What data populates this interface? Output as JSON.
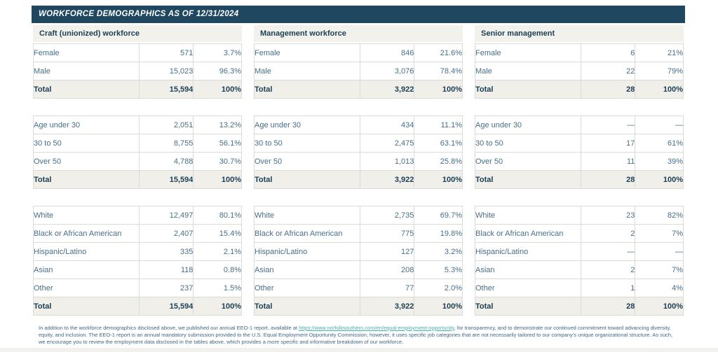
{
  "title_bar": {
    "title": "WORKFORCE DEMOGRAPHICS AS OF 12/31/2024"
  },
  "colors": {
    "title_bar_bg": "#1f4760",
    "title_bar_text": "#ffffff",
    "section_header_bg": "#f2f1ec",
    "total_row_bg": "#f0efea",
    "row_text": "#476e88",
    "bold_text": "#1d4055",
    "border": "#dadad6",
    "link": "#45b1aa"
  },
  "sections": [
    {
      "header": "Craft (unionized) workforce",
      "tables": [
        {
          "name": "gender",
          "rows": [
            [
              "Female",
              "571",
              "3.7%"
            ],
            [
              "Male",
              "15,023",
              "96.3%"
            ]
          ],
          "total_row": [
            "Total",
            "15,594",
            "100%"
          ]
        },
        {
          "name": "age",
          "rows": [
            [
              "Age under 30",
              "2,051",
              "13.2%"
            ],
            [
              "30 to 50",
              "8,755",
              "56.1%"
            ],
            [
              "Over 50",
              "4,788",
              "30.7%"
            ]
          ],
          "total_row": [
            "Total",
            "15,594",
            "100%"
          ]
        },
        {
          "name": "race-ethnicity",
          "rows": [
            [
              "White",
              "12,497",
              "80.1%"
            ],
            [
              "Black or African American",
              "2,407",
              "15.4%"
            ],
            [
              "Hispanic/Latino",
              "335",
              "2.1%"
            ],
            [
              "Asian",
              "118",
              "0.8%"
            ],
            [
              "Other",
              "237",
              "1.5%"
            ]
          ],
          "total_row": [
            "Total",
            "15,594",
            "100%"
          ]
        }
      ]
    },
    {
      "header": "Management workforce",
      "tables": [
        {
          "name": "gender",
          "rows": [
            [
              "Female",
              "846",
              "21.6%"
            ],
            [
              "Male",
              "3,076",
              "78.4%"
            ]
          ],
          "total_row": [
            "Total",
            "3,922",
            "100%"
          ]
        },
        {
          "name": "age",
          "rows": [
            [
              "Age under 30",
              "434",
              "11.1%"
            ],
            [
              "30 to 50",
              "2,475",
              "63.1%"
            ],
            [
              "Over 50",
              "1,013",
              "25.8%"
            ]
          ],
          "total_row": [
            "Total",
            "3,922",
            "100%"
          ]
        },
        {
          "name": "race-ethnicity",
          "rows": [
            [
              "White",
              "2,735",
              "69.7%"
            ],
            [
              "Black or African American",
              "775",
              "19.8%"
            ],
            [
              "Hispanic/Latino",
              "127",
              "3.2%"
            ],
            [
              "Asian",
              "208",
              "5.3%"
            ],
            [
              "Other",
              "77",
              "2.0%"
            ]
          ],
          "total_row": [
            "Total",
            "3,922",
            "100%"
          ]
        }
      ]
    },
    {
      "header": "Senior management",
      "tables": [
        {
          "name": "gender",
          "rows": [
            [
              "Female",
              "6",
              "21%"
            ],
            [
              "Male",
              "22",
              "79%"
            ]
          ],
          "total_row": [
            "Total",
            "28",
            "100%"
          ]
        },
        {
          "name": "age",
          "rows": [
            [
              "Age under 30",
              "—",
              "—"
            ],
            [
              "30 to 50",
              "17",
              "61%"
            ],
            [
              "Over 50",
              "11",
              "39%"
            ]
          ],
          "total_row": [
            "Total",
            "28",
            "100%"
          ]
        },
        {
          "name": "race-ethnicity",
          "rows": [
            [
              "White",
              "23",
              "82%"
            ],
            [
              "Black or African American",
              "2",
              "7%"
            ],
            [
              "Hispanic/Latino",
              "—",
              "—"
            ],
            [
              "Asian",
              "2",
              "7%"
            ],
            [
              "Other",
              "1",
              "4%"
            ]
          ],
          "total_row": [
            "Total",
            "28",
            "100%"
          ]
        }
      ]
    }
  ],
  "footnote": {
    "text_before_link": "In addition to the workforce demographics disclosed above, we published our annual EEO-1 report, available at ",
    "link_text": "https://www.norfolksouthern.com/en/equal-employment-opportunity",
    "text_after_link": ", for transparency, and to demonstrate our continued commitment toward advancing diversity, equity, and inclusion. The EEO-1 report is an annual mandatory submission provided to the U.S. Equal Employment Opportunity Commission; however, it uses specific job categories that are not necessarily tailored to our company's unique organizational structure. As such, we encourage you to review the employment data disclosed in the tables above, which provides a more specific and informative breakdown of our workforce."
  }
}
